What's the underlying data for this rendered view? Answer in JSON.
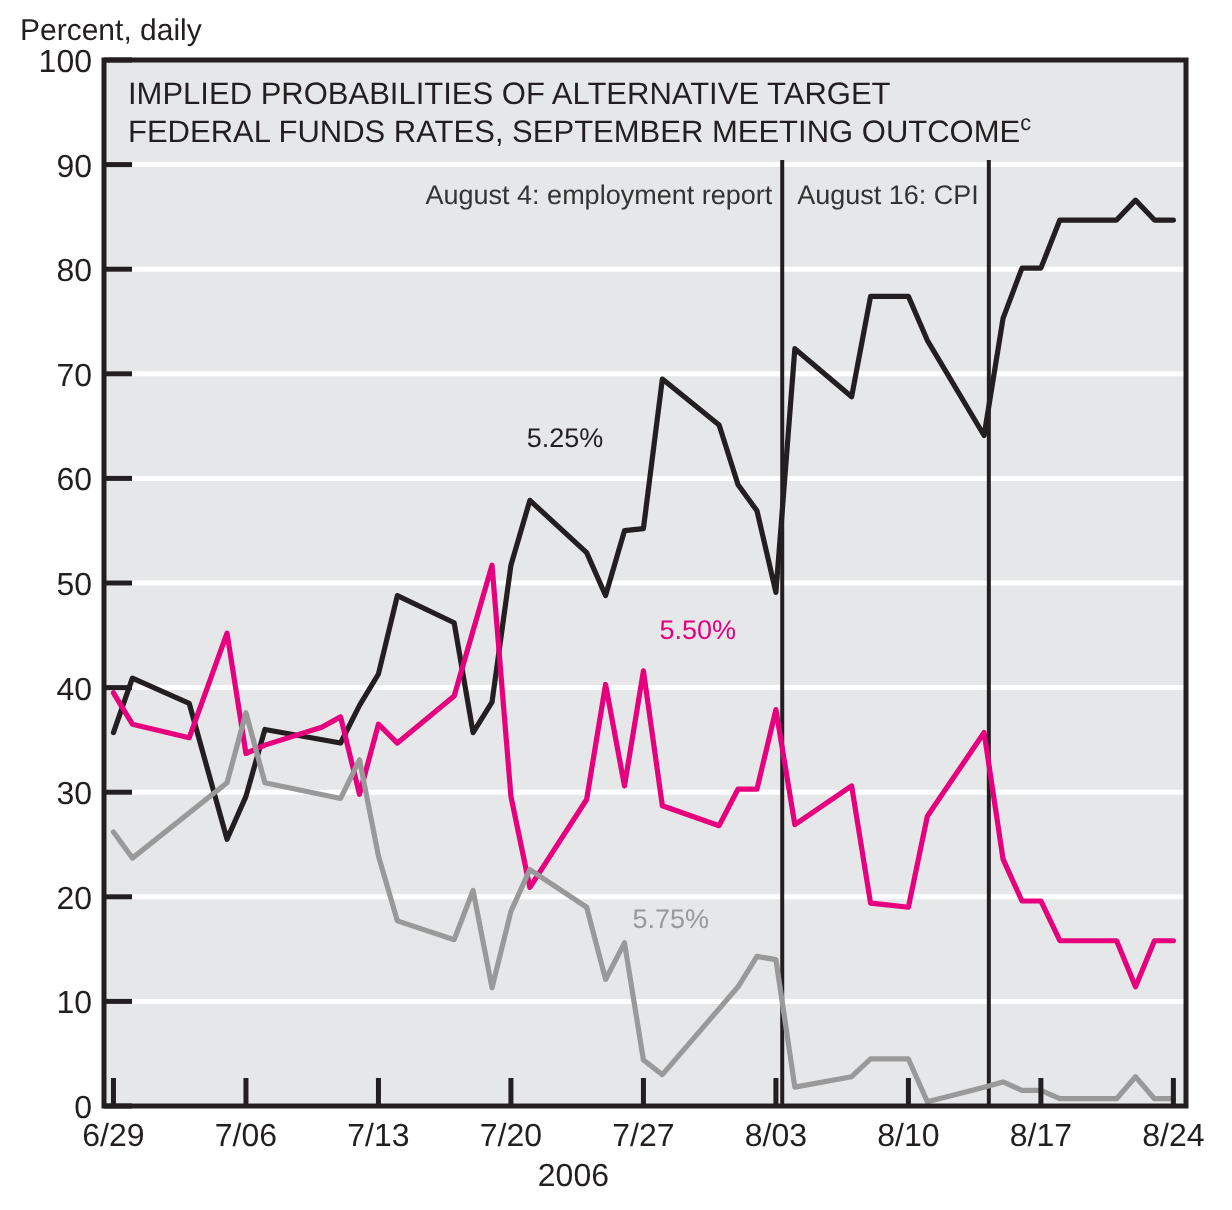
{
  "chart_data": {
    "type": "line",
    "title": "IMPLIED PROBABILITIES OF ALTERNATIVE TARGET FEDERAL FUNDS RATES, SEPTEMBER MEETING OUTCOME$^{c}$",
    "ylabel": "Percent, daily",
    "xlabel": "2006",
    "xlim": [
      "2006-06-28T12:00",
      "2006-08-24T16:00"
    ],
    "xticks": [
      {
        "value": "2006-06-29",
        "label": "6/29"
      },
      {
        "value": "2006-07-06",
        "label": "7/06"
      },
      {
        "value": "2006-07-13",
        "label": "7/13"
      },
      {
        "value": "2006-07-20",
        "label": "7/20"
      },
      {
        "value": "2006-07-27",
        "label": "7/27"
      },
      {
        "value": "2006-08-03",
        "label": "8/03"
      },
      {
        "value": "2006-08-10",
        "label": "8/10"
      },
      {
        "value": "2006-08-17",
        "label": "8/17"
      },
      {
        "value": "2006-08-24",
        "label": "8/24"
      }
    ],
    "ylim": [
      0,
      100
    ],
    "yticks": [
      0,
      10,
      20,
      30,
      40,
      50,
      60,
      70,
      80,
      90,
      100
    ],
    "grid": "y",
    "legend": false,
    "marker": "none",
    "line_style": "solid",
    "ref_lines": [
      {
        "axis": "x",
        "value": "2006-08-03T08:00",
        "label": "August 4: employment report",
        "color": "#231f20"
      },
      {
        "axis": "x",
        "value": "2006-08-14T06:00",
        "label": "August 16: CPI",
        "color": "#231f20"
      }
    ],
    "series": [
      {
        "name": "5.25%",
        "color": "#231f20",
        "x": [
          "2006-06-29",
          "2006-06-30",
          "2006-07-03",
          "2006-07-05",
          "2006-07-06",
          "2006-07-07",
          "2006-07-11",
          "2006-07-12",
          "2006-07-13",
          "2006-07-14",
          "2006-07-17",
          "2006-07-18",
          "2006-07-19",
          "2006-07-20",
          "2006-07-21",
          "2006-07-24",
          "2006-07-25",
          "2006-07-26",
          "2006-07-27",
          "2006-07-28",
          "2006-07-31",
          "2006-08-01",
          "2006-08-02",
          "2006-08-03",
          "2006-08-04",
          "2006-08-07",
          "2006-08-08",
          "2006-08-09",
          "2006-08-10",
          "2006-08-11",
          "2006-08-14",
          "2006-08-15",
          "2006-08-16",
          "2006-08-17",
          "2006-08-18",
          "2006-08-21",
          "2006-08-22",
          "2006-08-23",
          "2006-08-24"
        ],
        "values": [
          35.7,
          40.9,
          38.5,
          25.5,
          29.6,
          36,
          34.7,
          38.3,
          41.3,
          48.8,
          46.2,
          35.7,
          38.6,
          51.7,
          57.9,
          52.9,
          48.8,
          55,
          55.2,
          69.5,
          65.1,
          59.4,
          56.9,
          49.1,
          72.4,
          67.8,
          77.4,
          77.4,
          77.4,
          73.2,
          64.1,
          75.3,
          80.1,
          80.1,
          84.7,
          84.7,
          86.6,
          84.7,
          84.7
        ]
      },
      {
        "name": "5.50%",
        "color": "#e6007e",
        "x": [
          "2006-06-29",
          "2006-06-30",
          "2006-07-03",
          "2006-07-05",
          "2006-07-06",
          "2006-07-07",
          "2006-07-10",
          "2006-07-11",
          "2006-07-12",
          "2006-07-13",
          "2006-07-14",
          "2006-07-17",
          "2006-07-19",
          "2006-07-20",
          "2006-07-21",
          "2006-07-24",
          "2006-07-25",
          "2006-07-26",
          "2006-07-27",
          "2006-07-28",
          "2006-07-31",
          "2006-08-01",
          "2006-08-02",
          "2006-08-03",
          "2006-08-04",
          "2006-08-07",
          "2006-08-08",
          "2006-08-09",
          "2006-08-10",
          "2006-08-11",
          "2006-08-14",
          "2006-08-15",
          "2006-08-16",
          "2006-08-17",
          "2006-08-18",
          "2006-08-21",
          "2006-08-22",
          "2006-08-23",
          "2006-08-24"
        ],
        "values": [
          39.5,
          36.5,
          35.2,
          45.2,
          33.7,
          34.5,
          36.2,
          37.2,
          29.8,
          36.5,
          34.7,
          39.2,
          51.7,
          29.6,
          20.9,
          29.3,
          40.3,
          30.6,
          41.6,
          28.7,
          26.8,
          30.3,
          30.3,
          37.9,
          26.9,
          30.6,
          19.4,
          19.2,
          19,
          27.7,
          35.7,
          23.6,
          19.6,
          19.6,
          15.8,
          15.8,
          11.4,
          15.8,
          15.8
        ]
      },
      {
        "name": "5.75%",
        "color": "#999999",
        "x": [
          "2006-06-29",
          "2006-06-30",
          "2006-07-05",
          "2006-07-06",
          "2006-07-07",
          "2006-07-11",
          "2006-07-12",
          "2006-07-13",
          "2006-07-14",
          "2006-07-17",
          "2006-07-18",
          "2006-07-19",
          "2006-07-20",
          "2006-07-21",
          "2006-07-24",
          "2006-07-25",
          "2006-07-26",
          "2006-07-27",
          "2006-07-28",
          "2006-08-01",
          "2006-08-02",
          "2006-08-03",
          "2006-08-04",
          "2006-08-07",
          "2006-08-08",
          "2006-08-10",
          "2006-08-11",
          "2006-08-14",
          "2006-08-15",
          "2006-08-16",
          "2006-08-17",
          "2006-08-18",
          "2006-08-21",
          "2006-08-22",
          "2006-08-23",
          "2006-08-24"
        ],
        "values": [
          26.2,
          23.7,
          30.9,
          37.6,
          30.9,
          29.4,
          33.1,
          23.9,
          17.7,
          15.9,
          20.6,
          11.3,
          18.6,
          22.6,
          19,
          12.1,
          15.6,
          4.4,
          3,
          11.4,
          14.3,
          14,
          1.8,
          2.8,
          4.5,
          4.5,
          0.4,
          1.8,
          2.3,
          1.5,
          1.5,
          0.7,
          0.7,
          2.8,
          0.7,
          0.7
        ]
      }
    ]
  }
}
